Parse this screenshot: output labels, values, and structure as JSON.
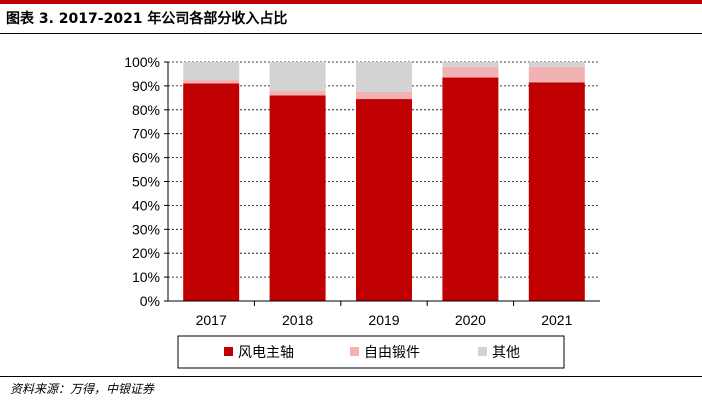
{
  "header": {
    "title": "图表 3. 2017-2021 年公司各部分收入占比"
  },
  "footer": {
    "source": "资料来源：万得，中银证券"
  },
  "colors": {
    "brand": "#c00000",
    "wind_spindle": "#c00000",
    "free_forging": "#f0b2b2",
    "other": "#d3d3d3"
  },
  "chart_data": {
    "type": "bar",
    "stacked": true,
    "title": "2017-2021 年公司各部分收入占比",
    "categories": [
      "2017",
      "2018",
      "2019",
      "2020",
      "2021"
    ],
    "series": [
      {
        "name": "风电主轴",
        "values": [
          91,
          86,
          84.5,
          93.5,
          91.5
        ],
        "color": "#c00000"
      },
      {
        "name": "自由锻件",
        "values": [
          1.5,
          2,
          3,
          4.5,
          6.5
        ],
        "color": "#f0b2b2"
      },
      {
        "name": "其他",
        "values": [
          7.5,
          12,
          12.5,
          2,
          2
        ],
        "color": "#d3d3d3"
      }
    ],
    "ylim": [
      0,
      100
    ],
    "yticks": [
      "0%",
      "10%",
      "20%",
      "30%",
      "40%",
      "50%",
      "60%",
      "70%",
      "80%",
      "90%",
      "100%"
    ],
    "grid": true,
    "legend": "bottom"
  }
}
